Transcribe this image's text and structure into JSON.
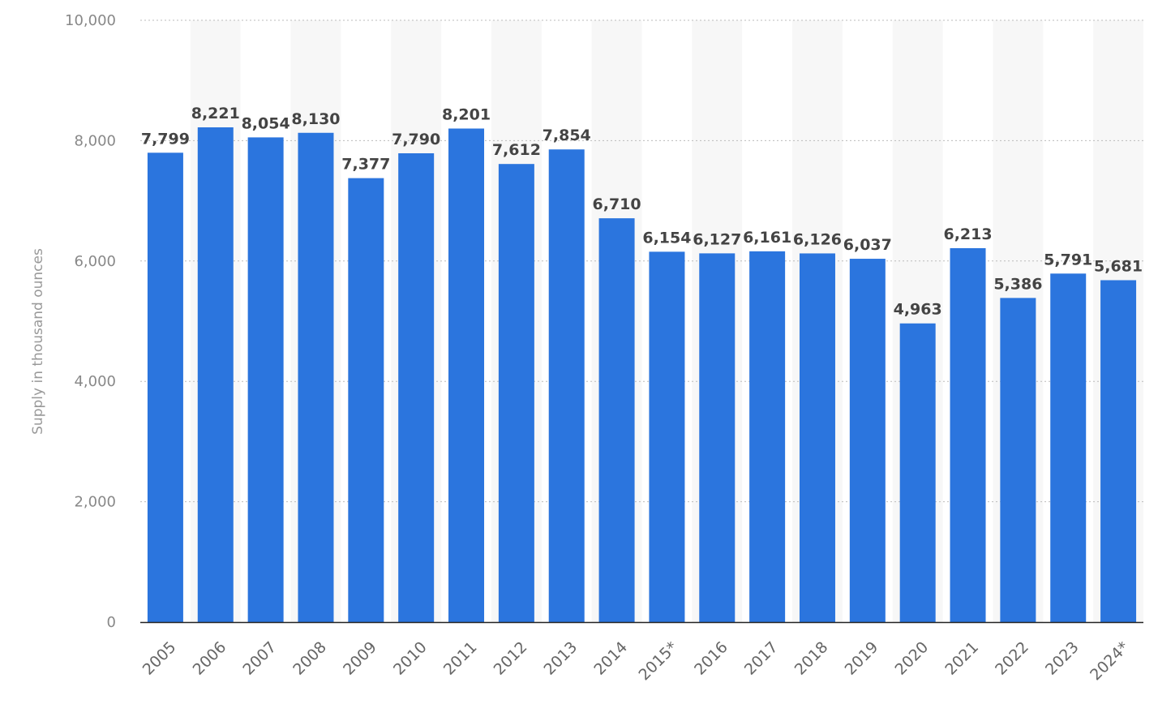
{
  "chart_data": {
    "type": "bar",
    "ylabel": "Supply in thousand ounces",
    "categories": [
      "2005",
      "2006",
      "2007",
      "2008",
      "2009",
      "2010",
      "2011",
      "2012",
      "2013",
      "2014",
      "2015*",
      "2016",
      "2017",
      "2018",
      "2019",
      "2020",
      "2021",
      "2022",
      "2023",
      "2024*"
    ],
    "values": [
      7799,
      8221,
      8054,
      8130,
      7377,
      7790,
      8201,
      7612,
      7854,
      6710,
      6154,
      6127,
      6161,
      6126,
      6037,
      4963,
      6213,
      5386,
      5791,
      5681
    ],
    "data_labels": [
      "7,799",
      "8,221",
      "8,054",
      "8,130",
      "7,377",
      "7,790",
      "8,201",
      "7,612",
      "7,854",
      "6,710",
      "6,154",
      "6,127",
      "6,161",
      "6,126",
      "6,037",
      "4,963",
      "6,213",
      "5,386",
      "5,791",
      "5,681"
    ],
    "ylim": [
      0,
      10000
    ],
    "yticks": [
      0,
      2000,
      4000,
      6000,
      8000,
      10000
    ],
    "ytick_labels": [
      "0",
      "2,000",
      "4,000",
      "6,000",
      "8,000",
      "10,000"
    ],
    "grid": true,
    "bar_color": "#2b75de",
    "band_color": "#f7f7f7",
    "grid_color": "#bbbbbb"
  }
}
